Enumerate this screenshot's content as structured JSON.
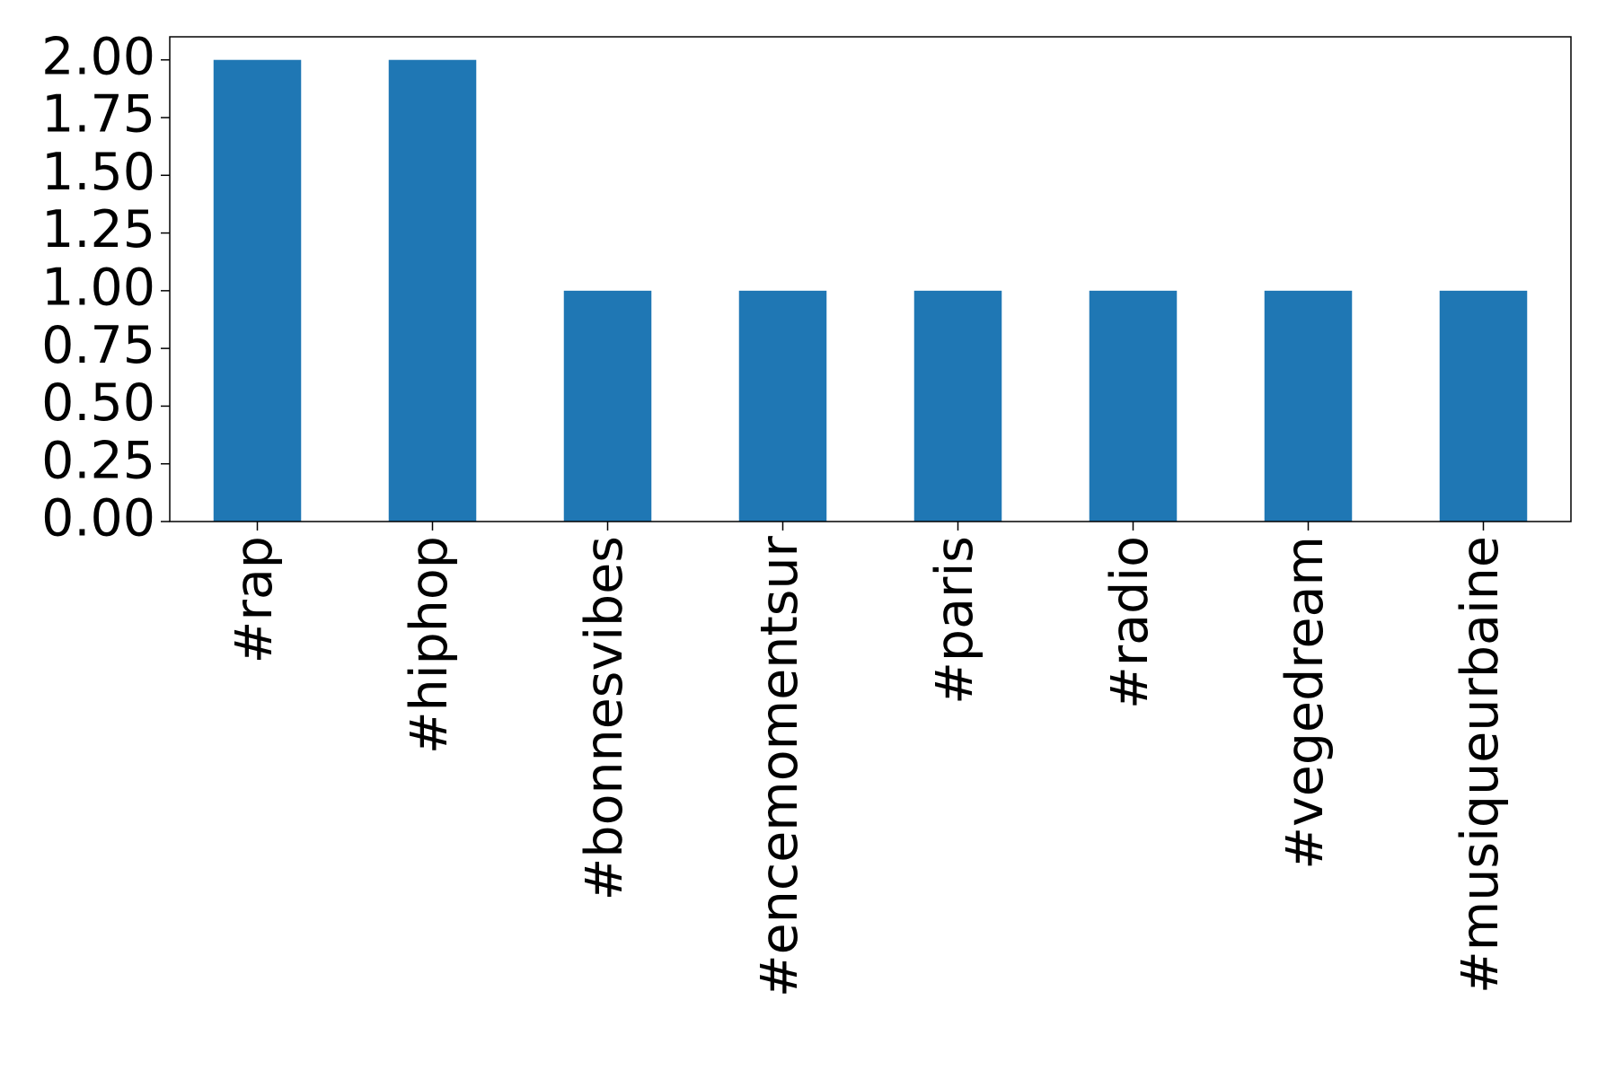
{
  "chart_data": {
    "type": "bar",
    "categories": [
      "#rap",
      "#hiphop",
      "#bonnesvibes",
      "#encemomentsur",
      "#paris",
      "#radio",
      "#vegedream",
      "#musiqueurbaine"
    ],
    "values": [
      2,
      2,
      1,
      1,
      1,
      1,
      1,
      1
    ],
    "color": "#1f77b4",
    "ylim": [
      0,
      2.1
    ],
    "yticks": [
      {
        "value": 0,
        "label": "0.00"
      },
      {
        "value": 0.25,
        "label": "0.25"
      },
      {
        "value": 0.5,
        "label": "0.50"
      },
      {
        "value": 0.75,
        "label": "0.75"
      },
      {
        "value": 1,
        "label": "1.00"
      },
      {
        "value": 1.25,
        "label": "1.25"
      },
      {
        "value": 1.5,
        "label": "1.50"
      },
      {
        "value": 1.75,
        "label": "1.75"
      },
      {
        "value": 2,
        "label": "2.00"
      }
    ],
    "grid": false
  }
}
